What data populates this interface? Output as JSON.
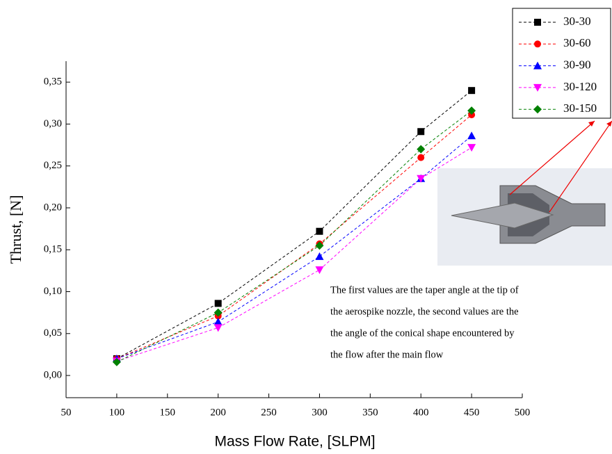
{
  "chart_data": {
    "type": "line",
    "xlabel": "Mass Flow Rate, [SLPM]",
    "ylabel": "Thrust, [N]",
    "x": [
      100,
      200,
      300,
      400,
      450
    ],
    "series": [
      {
        "name": "30-30",
        "color": "#000000",
        "marker": "square",
        "values": [
          0.02,
          0.086,
          0.172,
          0.291,
          0.34
        ]
      },
      {
        "name": "30-60",
        "color": "#ff0000",
        "marker": "circle",
        "values": [
          0.02,
          0.071,
          0.157,
          0.26,
          0.311
        ]
      },
      {
        "name": "30-90",
        "color": "#0000ff",
        "marker": "triangle-up",
        "values": [
          0.02,
          0.064,
          0.142,
          0.235,
          0.286
        ]
      },
      {
        "name": "30-120",
        "color": "#ff00ff",
        "marker": "triangle-down",
        "values": [
          0.017,
          0.057,
          0.126,
          0.235,
          0.272
        ]
      },
      {
        "name": "30-150",
        "color": "#008000",
        "marker": "diamond",
        "values": [
          0.016,
          0.075,
          0.155,
          0.27,
          0.316
        ]
      }
    ],
    "xlim": [
      50,
      500
    ],
    "xticks": [
      50,
      100,
      150,
      200,
      250,
      300,
      350,
      400,
      450,
      500
    ],
    "ylim": [
      -0.0265,
      0.375
    ],
    "yticks": [
      {
        "value": 0,
        "label": "0,00"
      },
      {
        "value": 0.05,
        "label": "0,05"
      },
      {
        "value": 0.1,
        "label": "0,10"
      },
      {
        "value": 0.15,
        "label": "0,15"
      },
      {
        "value": 0.2,
        "label": "0,20"
      },
      {
        "value": 0.25,
        "label": "0,25"
      },
      {
        "value": 0.3,
        "label": "0,30"
      },
      {
        "value": 0.35,
        "label": "0,35"
      }
    ],
    "annotation": [
      "The first values are  the taper angle at the tip of",
      "the aerospike nozzle, the second values are the",
      "the angle of the conical shape encountered  by",
      "the flow after the main flow"
    ]
  }
}
